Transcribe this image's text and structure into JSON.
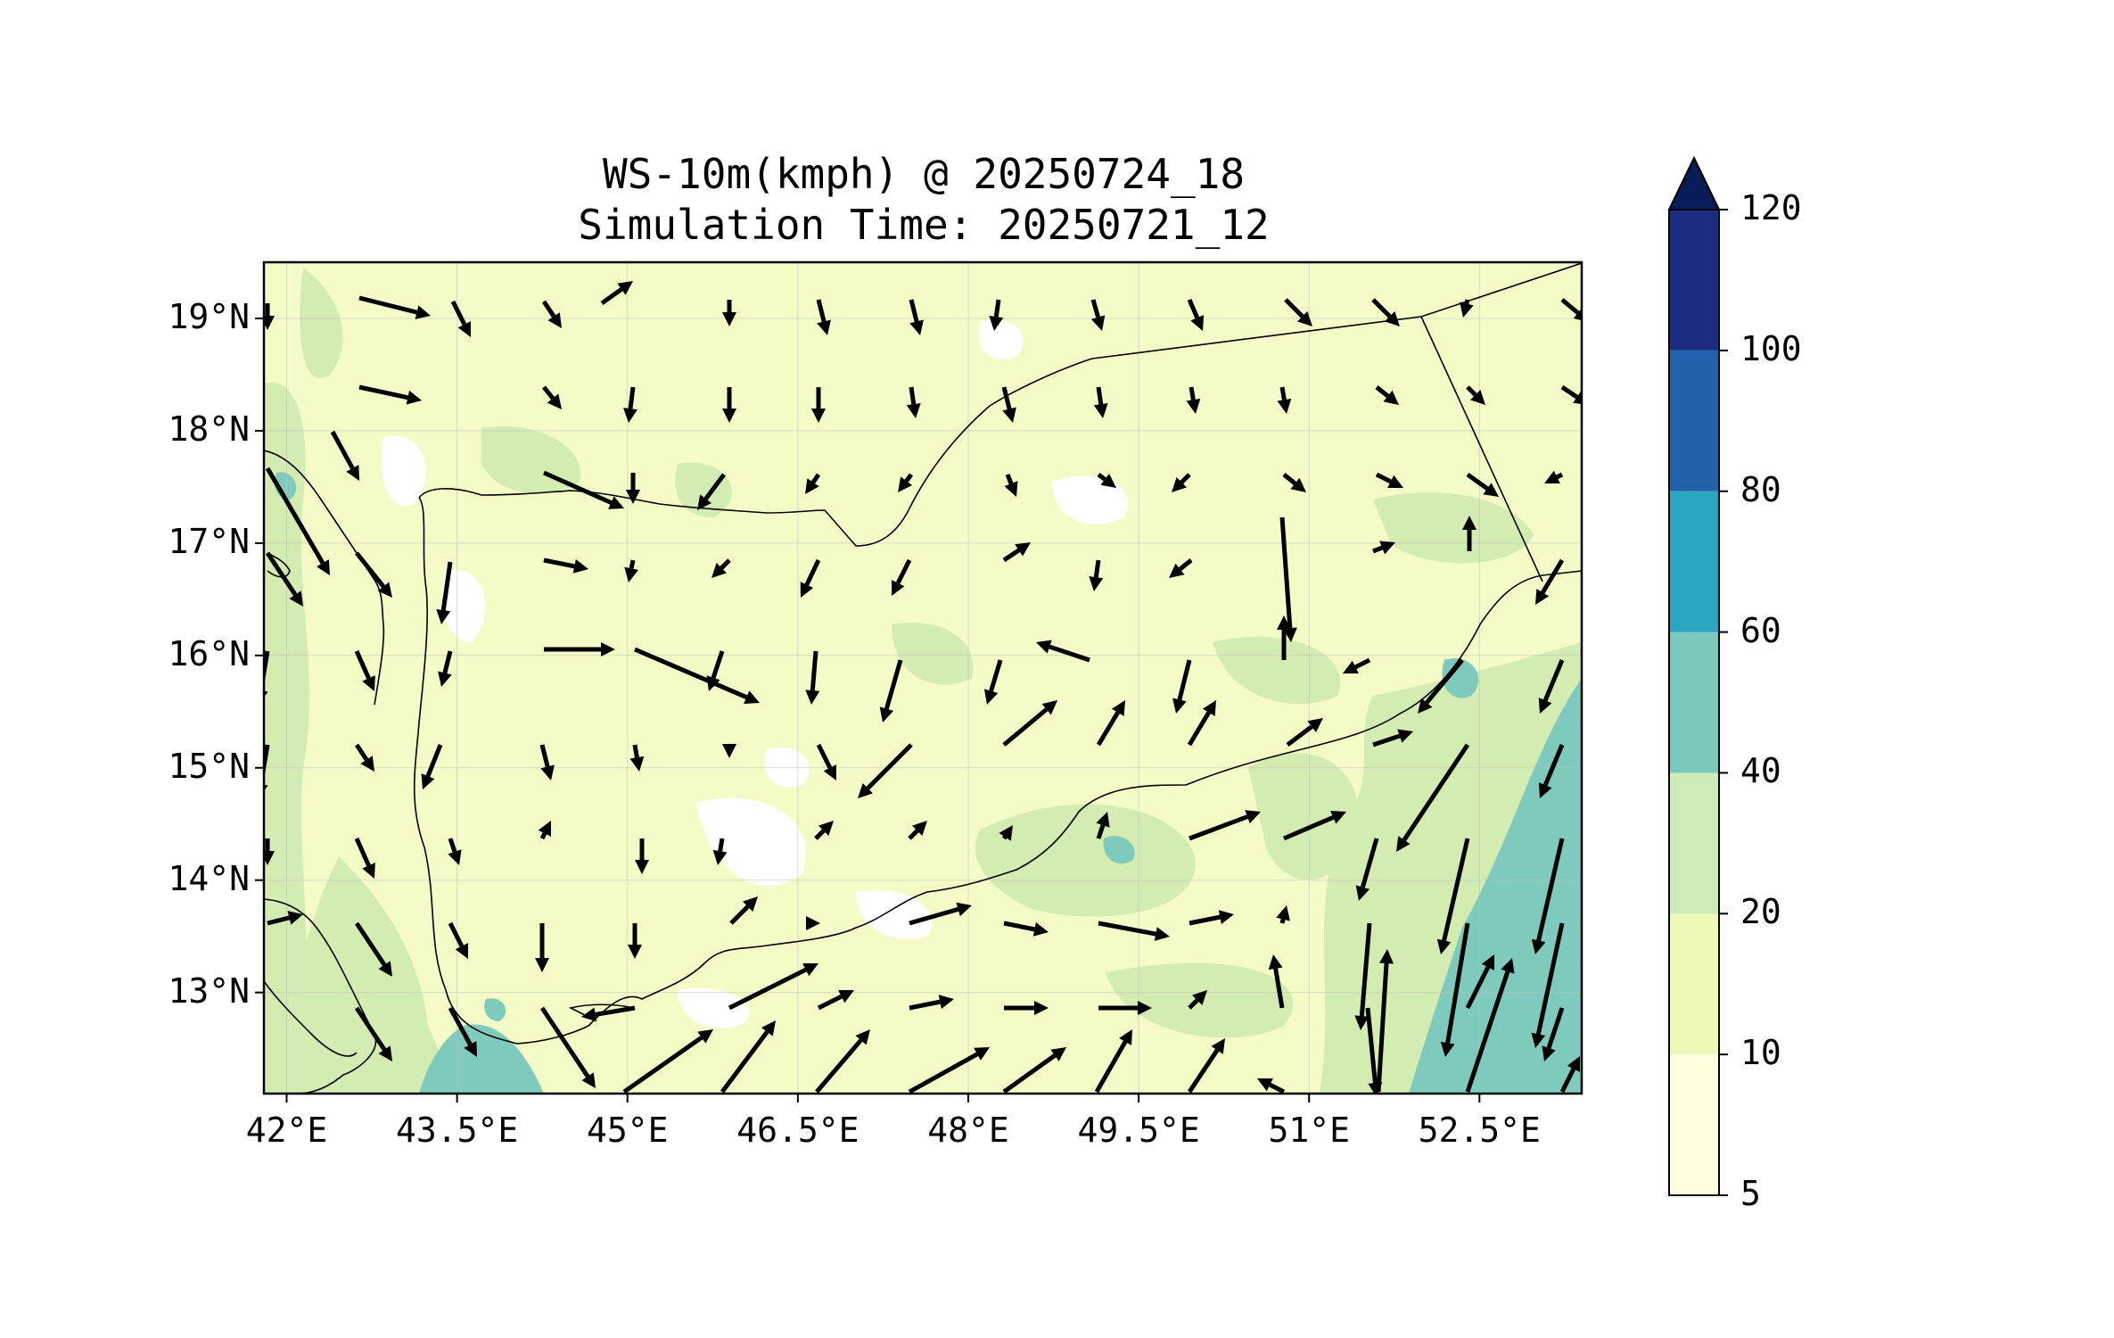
{
  "title": "WS-10m(kmph) @ 20250724_18",
  "subtitle": "Simulation Time: 20250721_12",
  "map": {
    "lon_range": [
      41.8,
      53.4
    ],
    "lat_range": [
      12.1,
      19.5
    ],
    "lat_ticks": [
      {
        "value": 13,
        "label": "13°N"
      },
      {
        "value": 14,
        "label": "14°N"
      },
      {
        "value": 15,
        "label": "15°N"
      },
      {
        "value": 16,
        "label": "16°N"
      },
      {
        "value": 17,
        "label": "17°N"
      },
      {
        "value": 18,
        "label": "18°N"
      },
      {
        "value": 19,
        "label": "19°N"
      }
    ],
    "lon_ticks": [
      {
        "value": 42.0,
        "label": "42°E"
      },
      {
        "value": 43.5,
        "label": "43.5°E"
      },
      {
        "value": 45.0,
        "label": "45°E"
      },
      {
        "value": 46.5,
        "label": "46.5°E"
      },
      {
        "value": 48.0,
        "label": "48°E"
      },
      {
        "value": 49.5,
        "label": "49.5°E"
      },
      {
        "value": 51.0,
        "label": "51°E"
      },
      {
        "value": 52.5,
        "label": "52.5°E"
      }
    ],
    "gridlines": true,
    "field_colors": {
      "background": "#f4fbc6",
      "land_light": "#f7fcc8",
      "moderate": "#d2ecb2",
      "strong": "#7ecbbd",
      "calm": "#ffffff"
    }
  },
  "colorbar": {
    "levels": [
      5,
      10,
      20,
      40,
      60,
      80,
      100,
      120
    ],
    "colors": [
      "#ffffe0",
      "#edf8b6",
      "#cdebb4",
      "#79c8bc",
      "#2ca5c2",
      "#2163aa",
      "#1c2c81"
    ],
    "extend_color": "#081d58",
    "extend": "max"
  }
}
